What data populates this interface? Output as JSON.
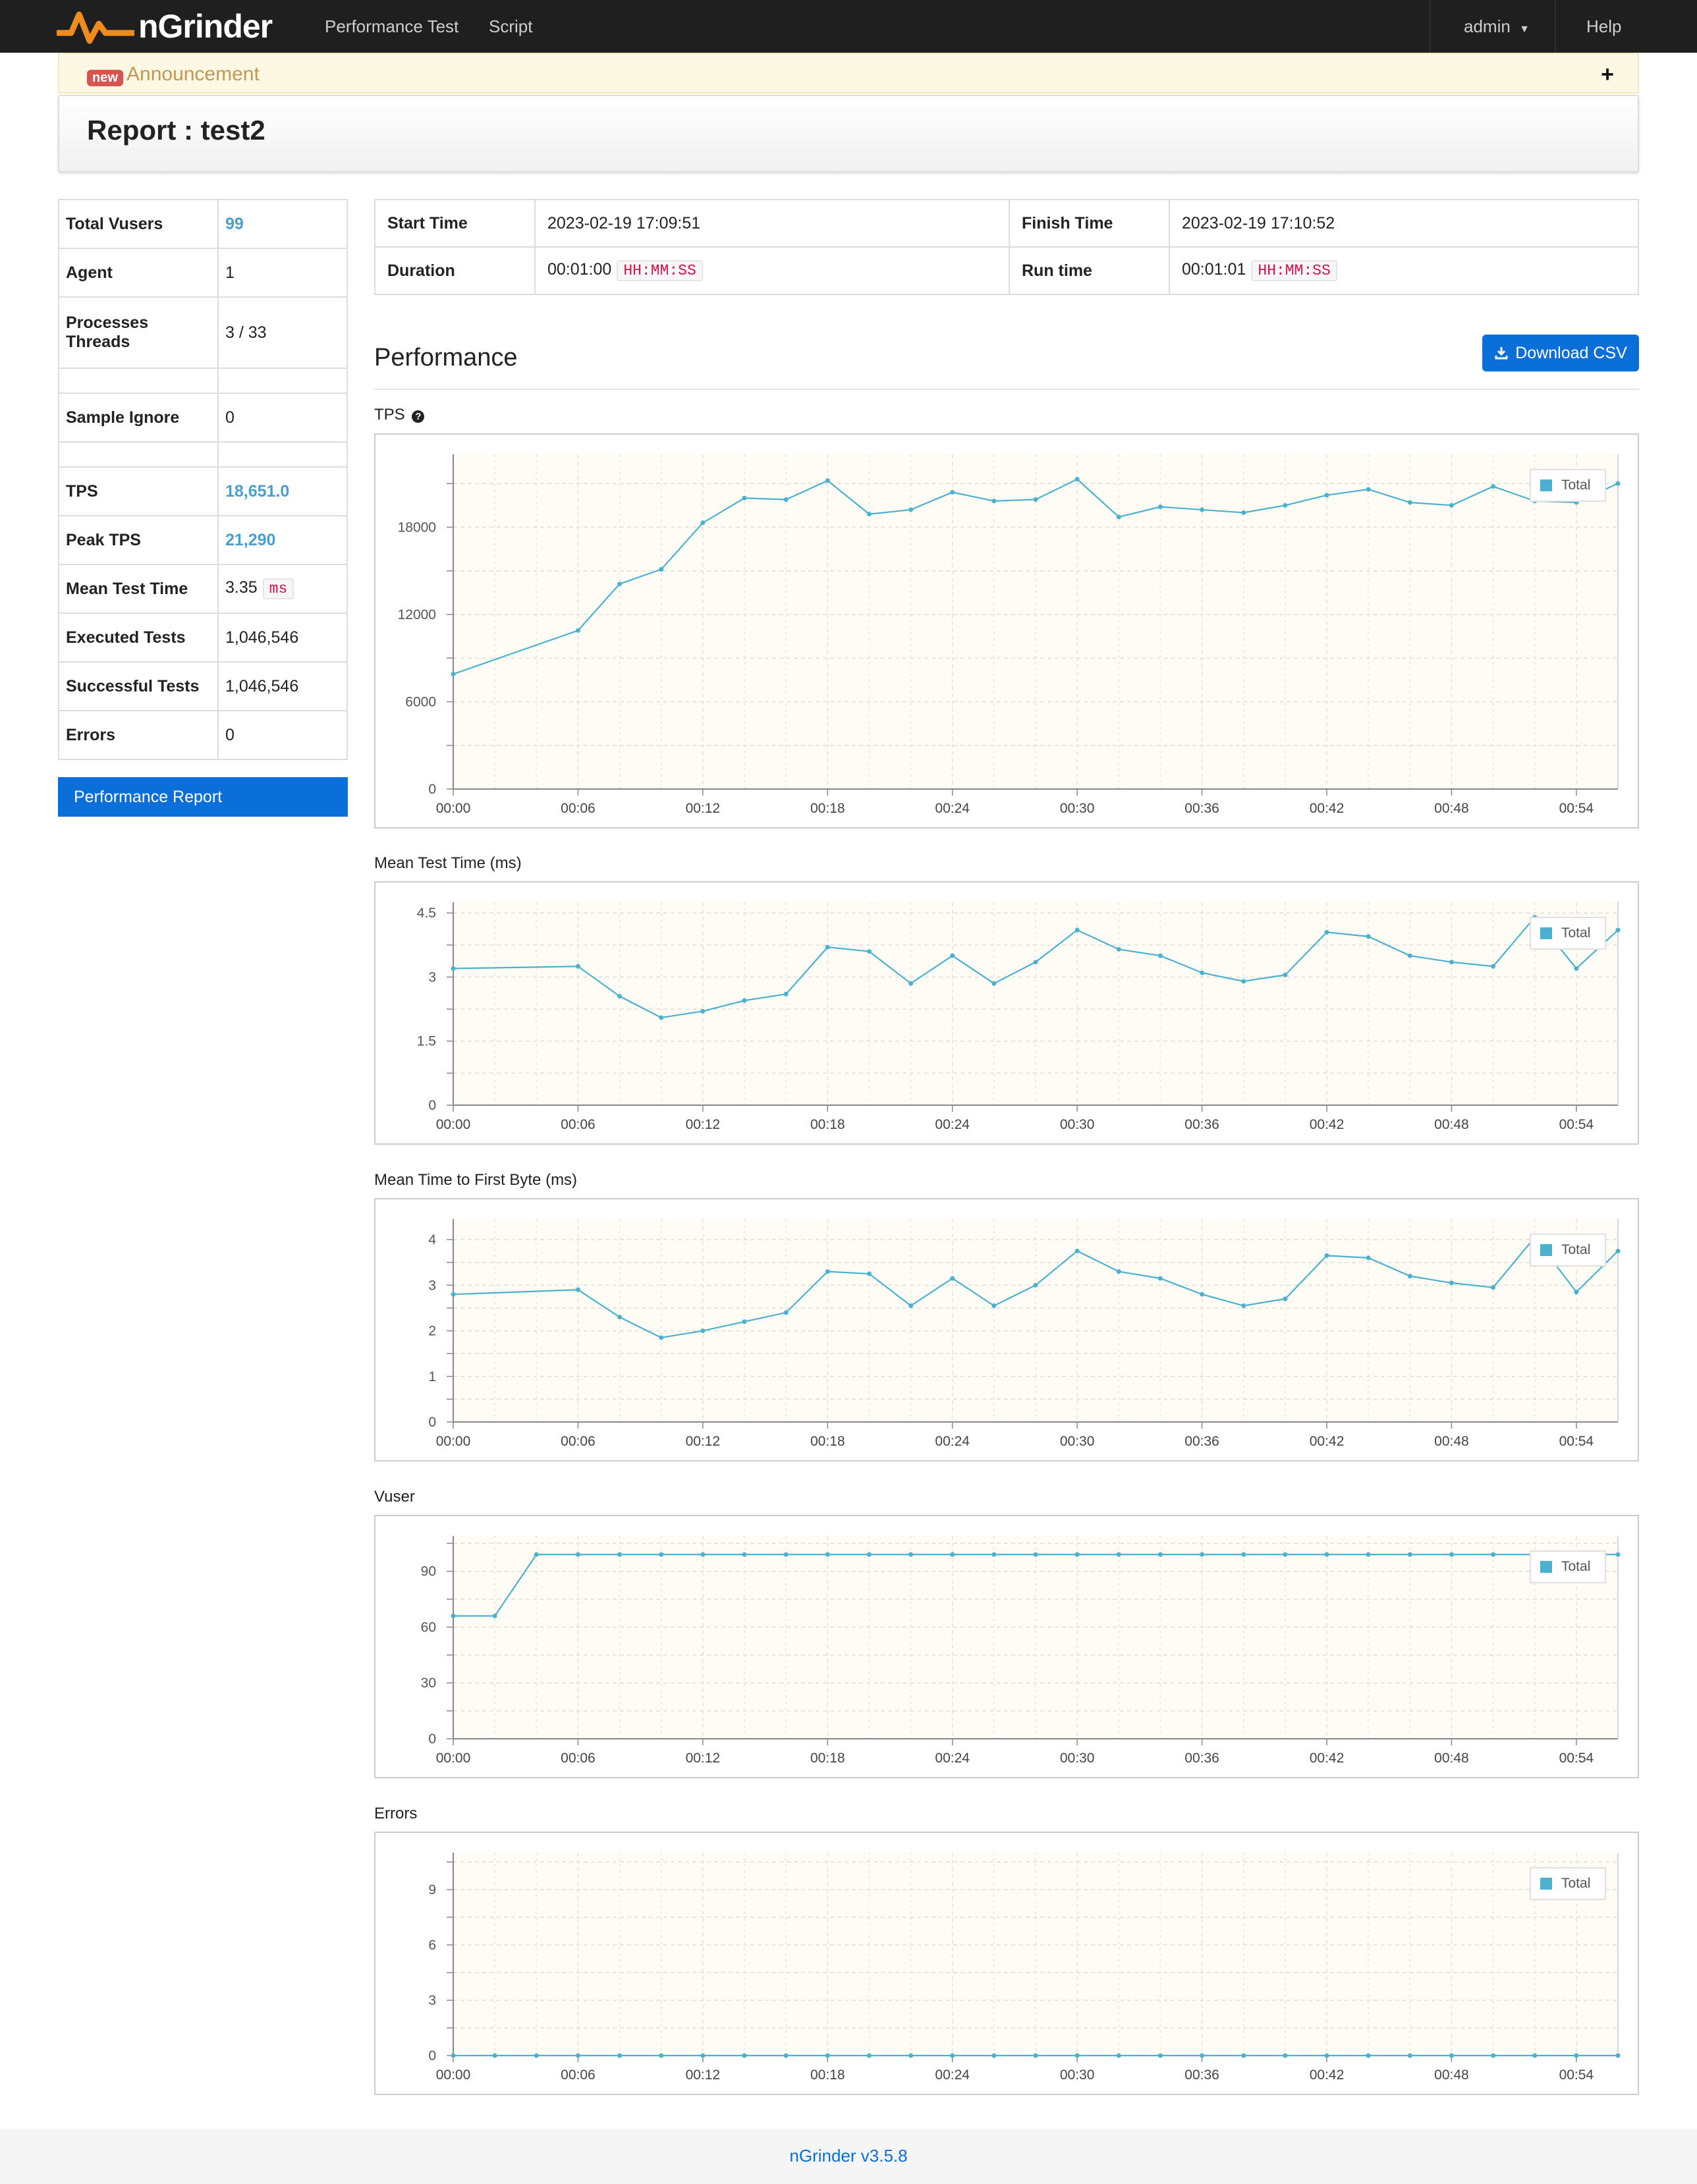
{
  "navbar": {
    "brand": "nGrinder",
    "links": [
      "Performance Test",
      "Script"
    ],
    "user": "admin",
    "help": "Help"
  },
  "announcement": {
    "badge": "new",
    "title": "Announcement",
    "toggle": "+"
  },
  "report": {
    "title": "Report : test2"
  },
  "summary": {
    "total_vusers_label": "Total Vusers",
    "total_vusers": "99",
    "agent_label": "Agent",
    "agent": "1",
    "processes_label": "Processes",
    "threads_label": "Threads",
    "processes_threads": "3 / 33",
    "sample_ignore_label": "Sample Ignore",
    "sample_ignore": "0",
    "tps_label": "TPS",
    "tps": "18,651.0",
    "peak_tps_label": "Peak TPS",
    "peak_tps": "21,290",
    "mean_test_time_label": "Mean Test Time",
    "mean_test_time": "3.35",
    "mean_test_time_unit": "ms",
    "executed_label": "Executed Tests",
    "executed": "1,046,546",
    "successful_label": "Successful Tests",
    "successful": "1,046,546",
    "errors_label": "Errors",
    "errors": "0"
  },
  "perf_report_button": "Performance Report",
  "times": {
    "start_label": "Start Time",
    "start": "2023-02-19 17:09:51",
    "finish_label": "Finish Time",
    "finish": "2023-02-19 17:10:52",
    "duration_label": "Duration",
    "duration": "00:01:00",
    "duration_unit": "HH:MM:SS",
    "runtime_label": "Run time",
    "runtime": "00:01:01",
    "runtime_unit": "HH:MM:SS"
  },
  "performance": {
    "title": "Performance",
    "download_csv": "Download CSV"
  },
  "legend_label": "Total",
  "colors": {
    "line": "#4bb1cf",
    "plot_bg": "#fefcf4",
    "primary": "#0a6fd9"
  },
  "footer": "nGrinder v3.5.8",
  "chart_data": [
    {
      "type": "line",
      "title": "TPS",
      "x": [
        "00:00",
        "00:02",
        "00:04",
        "00:06",
        "00:08",
        "00:10",
        "00:12",
        "00:14",
        "00:16",
        "00:18",
        "00:20",
        "00:22",
        "00:24",
        "00:26",
        "00:28",
        "00:30",
        "00:32",
        "00:34",
        "00:36",
        "00:38",
        "00:40",
        "00:42",
        "00:44",
        "00:46",
        "00:48",
        "00:50",
        "00:52",
        "00:54",
        "00:56"
      ],
      "xticks": [
        "00:00",
        "00:06",
        "00:12",
        "00:18",
        "00:24",
        "00:30",
        "00:36",
        "00:42",
        "00:48",
        "00:54"
      ],
      "series": [
        {
          "name": "Total",
          "values": [
            7900,
            null,
            null,
            10900,
            14100,
            15100,
            18300,
            20000,
            19900,
            21200,
            18900,
            19200,
            20400,
            19800,
            19900,
            21300,
            18700,
            19400,
            19200,
            19000,
            19500,
            20200,
            20600,
            19700,
            19500,
            20800,
            19800,
            19700,
            21000
          ]
        }
      ],
      "ylim": [
        0,
        23000
      ],
      "yticks": [
        0,
        6000,
        12000,
        18000
      ]
    },
    {
      "type": "line",
      "title": "Mean Test Time (ms)",
      "x": [
        "00:00",
        "00:02",
        "00:04",
        "00:06",
        "00:08",
        "00:10",
        "00:12",
        "00:14",
        "00:16",
        "00:18",
        "00:20",
        "00:22",
        "00:24",
        "00:26",
        "00:28",
        "00:30",
        "00:32",
        "00:34",
        "00:36",
        "00:38",
        "00:40",
        "00:42",
        "00:44",
        "00:46",
        "00:48",
        "00:50",
        "00:52",
        "00:54",
        "00:56"
      ],
      "xticks": [
        "00:00",
        "00:06",
        "00:12",
        "00:18",
        "00:24",
        "00:30",
        "00:36",
        "00:42",
        "00:48",
        "00:54"
      ],
      "series": [
        {
          "name": "Total",
          "values": [
            3.2,
            null,
            null,
            3.25,
            2.55,
            2.05,
            2.2,
            2.45,
            2.6,
            3.7,
            3.6,
            2.85,
            3.5,
            2.85,
            3.35,
            4.1,
            3.65,
            3.5,
            3.1,
            2.9,
            3.05,
            4.05,
            3.95,
            3.5,
            3.35,
            3.25,
            4.4,
            3.2,
            4.1
          ]
        }
      ],
      "ylim": [
        0,
        4.75
      ],
      "yticks": [
        0,
        1.5,
        3,
        4.5
      ]
    },
    {
      "type": "line",
      "title": "Mean Time to First Byte (ms)",
      "x": [
        "00:00",
        "00:02",
        "00:04",
        "00:06",
        "00:08",
        "00:10",
        "00:12",
        "00:14",
        "00:16",
        "00:18",
        "00:20",
        "00:22",
        "00:24",
        "00:26",
        "00:28",
        "00:30",
        "00:32",
        "00:34",
        "00:36",
        "00:38",
        "00:40",
        "00:42",
        "00:44",
        "00:46",
        "00:48",
        "00:50",
        "00:52",
        "00:54",
        "00:56"
      ],
      "xticks": [
        "00:00",
        "00:06",
        "00:12",
        "00:18",
        "00:24",
        "00:30",
        "00:36",
        "00:42",
        "00:48",
        "00:54"
      ],
      "series": [
        {
          "name": "Total",
          "values": [
            2.8,
            null,
            null,
            2.9,
            2.3,
            1.85,
            2.0,
            2.2,
            2.4,
            3.3,
            3.25,
            2.55,
            3.15,
            2.55,
            3.0,
            3.75,
            3.3,
            3.15,
            2.8,
            2.55,
            2.7,
            3.65,
            3.6,
            3.2,
            3.05,
            2.95,
            4.05,
            2.85,
            3.75
          ]
        }
      ],
      "ylim": [
        0,
        4.45
      ],
      "yticks": [
        0,
        1,
        2,
        3,
        4
      ]
    },
    {
      "type": "line",
      "title": "Vuser",
      "x": [
        "00:00",
        "00:02",
        "00:04",
        "00:06",
        "00:08",
        "00:10",
        "00:12",
        "00:14",
        "00:16",
        "00:18",
        "00:20",
        "00:22",
        "00:24",
        "00:26",
        "00:28",
        "00:30",
        "00:32",
        "00:34",
        "00:36",
        "00:38",
        "00:40",
        "00:42",
        "00:44",
        "00:46",
        "00:48",
        "00:50",
        "00:52",
        "00:54",
        "00:56"
      ],
      "xticks": [
        "00:00",
        "00:06",
        "00:12",
        "00:18",
        "00:24",
        "00:30",
        "00:36",
        "00:42",
        "00:48",
        "00:54"
      ],
      "series": [
        {
          "name": "Total",
          "values": [
            66,
            66,
            99,
            99,
            99,
            99,
            99,
            99,
            99,
            99,
            99,
            99,
            99,
            99,
            99,
            99,
            99,
            99,
            99,
            99,
            99,
            99,
            99,
            99,
            99,
            99,
            99,
            99,
            99
          ]
        }
      ],
      "ylim": [
        0,
        109
      ],
      "yticks": [
        0,
        30,
        60,
        90
      ]
    },
    {
      "type": "line",
      "title": "Errors",
      "x": [
        "00:00",
        "00:02",
        "00:04",
        "00:06",
        "00:08",
        "00:10",
        "00:12",
        "00:14",
        "00:16",
        "00:18",
        "00:20",
        "00:22",
        "00:24",
        "00:26",
        "00:28",
        "00:30",
        "00:32",
        "00:34",
        "00:36",
        "00:38",
        "00:40",
        "00:42",
        "00:44",
        "00:46",
        "00:48",
        "00:50",
        "00:52",
        "00:54",
        "00:56"
      ],
      "xticks": [
        "00:00",
        "00:06",
        "00:12",
        "00:18",
        "00:24",
        "00:30",
        "00:36",
        "00:42",
        "00:48",
        "00:54"
      ],
      "series": [
        {
          "name": "Total",
          "values": [
            0,
            0,
            0,
            0,
            0,
            0,
            0,
            0,
            0,
            0,
            0,
            0,
            0,
            0,
            0,
            0,
            0,
            0,
            0,
            0,
            0,
            0,
            0,
            0,
            0,
            0,
            0,
            0,
            0
          ]
        }
      ],
      "ylim": [
        0,
        11
      ],
      "yticks": [
        0,
        3,
        6,
        9
      ]
    }
  ]
}
